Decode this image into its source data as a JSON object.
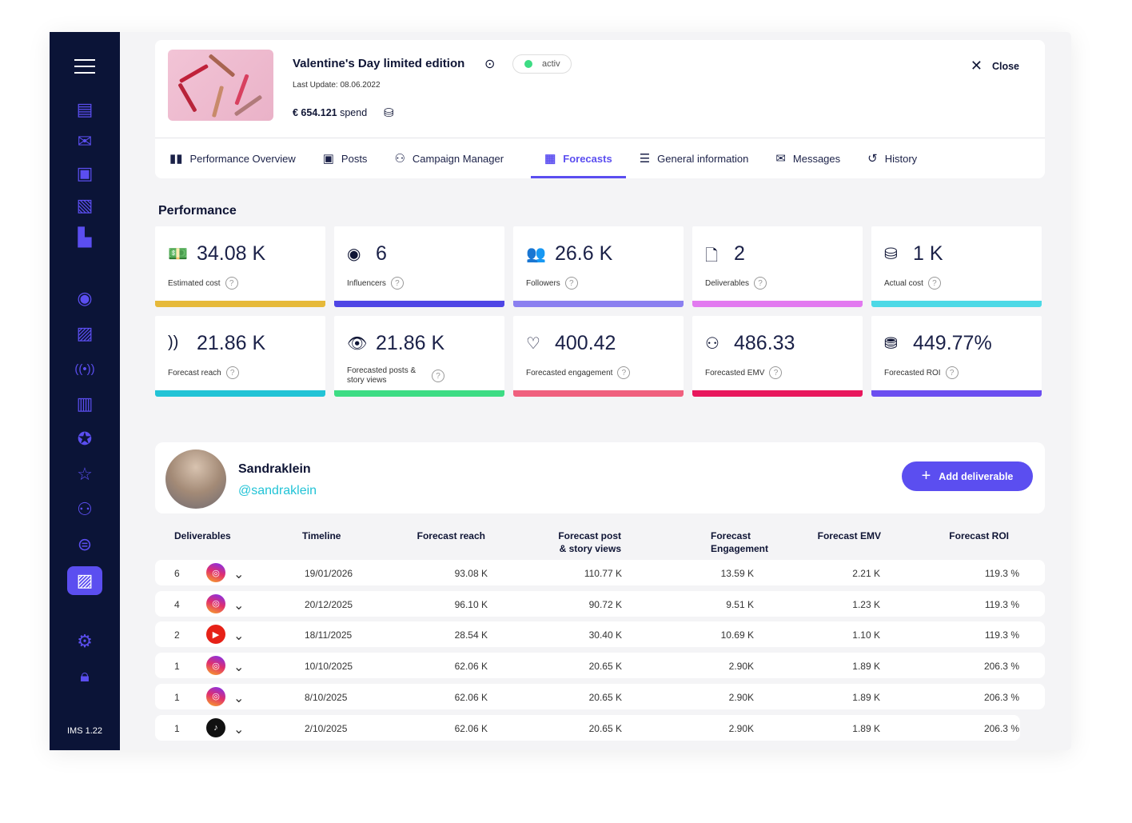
{
  "sidebar": {
    "version": "IMS 1.22",
    "icons": [
      "layout-icon",
      "mail-icon",
      "contacts-icon",
      "profile-doc-icon",
      "buildings-icon",
      "eye-icon",
      "image-search-icon",
      "broadcast-icon",
      "report-search-icon",
      "award-icon",
      "star-icon",
      "users-icon",
      "coins-icon",
      "forecast-doc-icon",
      "settings-icon",
      "lock-icon"
    ]
  },
  "header": {
    "title": "Valentine's Day limited edition",
    "status": "activ",
    "last_update": "Last Update: 08.06.2022",
    "spend_amount": "€ 654.121",
    "spend_label": "spend",
    "close_label": "Close"
  },
  "tabs": [
    {
      "label": "Performance Overview",
      "icon": "▮▮"
    },
    {
      "label": "Posts",
      "icon": "▣"
    },
    {
      "label": "Campaign Manager",
      "icon": "⚇"
    },
    {
      "label": "Forecasts",
      "icon": "▦"
    },
    {
      "label": "General information",
      "icon": "☰"
    },
    {
      "label": "Messages",
      "icon": "✉"
    },
    {
      "label": "History",
      "icon": "↺"
    }
  ],
  "active_tab": "Forecasts",
  "performance": {
    "title": "Performance",
    "cards": [
      {
        "value": "34.08 K",
        "label": "Estimated cost",
        "icon": "💵",
        "color": "#e6b93a"
      },
      {
        "value": "6",
        "label": "Influencers",
        "icon": "◉",
        "color": "#4f46e5"
      },
      {
        "value": "26.6 K",
        "label": "Followers",
        "icon": "👥",
        "color": "#8b80f0"
      },
      {
        "value": "2",
        "label": "Deliverables",
        "icon": "🗋",
        "color": "#e27af0"
      },
      {
        "value": "1 K",
        "label": "Actual cost",
        "icon": "⛁",
        "color": "#4dd9e6"
      },
      {
        "value": "21.86 K",
        "label": "Forecast reach",
        "icon": "))",
        "color": "#22c3d6"
      },
      {
        "value": "21.86 K",
        "label": "Forecasted posts & story views",
        "icon": "👁",
        "color": "#3ddc84"
      },
      {
        "value": "400.42",
        "label": "Forecasted engagement",
        "icon": "♡",
        "color": "#f0607e"
      },
      {
        "value": "486.33",
        "label": "Forecasted EMV",
        "icon": "⚇",
        "color": "#e8175d"
      },
      {
        "value": "449.77%",
        "label": "Forecasted ROI",
        "icon": "⛃",
        "color": "#6b4ef0"
      }
    ]
  },
  "influencer": {
    "name": "Sandraklein",
    "handle": "@sandraklein",
    "add_label": "Add deliverable"
  },
  "table": {
    "headers": [
      "Deliverables",
      "Timeline",
      "Forecast reach",
      "Forecast post & story views",
      "Forecast Engagement",
      "Forecast EMV",
      "Forecast ROI"
    ],
    "rows": [
      {
        "count": "6",
        "platform": "instagram",
        "date": "19/01/2026",
        "reach": "93.08 K",
        "views": "110.77 K",
        "engagement": "13.59 K",
        "emv": "2.21 K",
        "roi": "119.3 %"
      },
      {
        "count": "4",
        "platform": "instagram",
        "date": "20/12/2025",
        "reach": "96.10 K",
        "views": "90.72 K",
        "engagement": "9.51 K",
        "emv": "1.23 K",
        "roi": "119.3 %"
      },
      {
        "count": "2",
        "platform": "youtube",
        "date": "18/11/2025",
        "reach": "28.54 K",
        "views": "30.40 K",
        "engagement": "10.69 K",
        "emv": "1.10 K",
        "roi": "119.3 %"
      },
      {
        "count": "1",
        "platform": "instagram",
        "date": "10/10/2025",
        "reach": "62.06 K",
        "views": "20.65 K",
        "engagement": "2.90K",
        "emv": "1.89 K",
        "roi": "206.3 %"
      },
      {
        "count": "1",
        "platform": "instagram",
        "date": "8/10/2025",
        "reach": "62.06 K",
        "views": "20.65 K",
        "engagement": "2.90K",
        "emv": "1.89 K",
        "roi": "206.3 %"
      },
      {
        "count": "1",
        "platform": "tiktok",
        "date": "2/10/2025",
        "reach": "62.06 K",
        "views": "20.65 K",
        "engagement": "2.90K",
        "emv": "1.89 K",
        "roi": "206.3 %"
      }
    ]
  }
}
